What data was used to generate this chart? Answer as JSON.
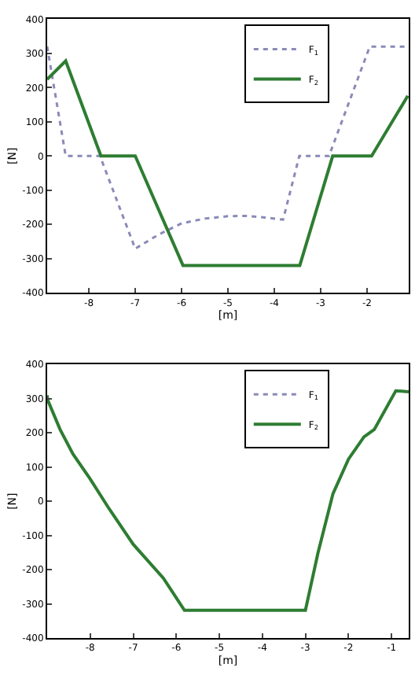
{
  "chart_data": [
    {
      "type": "line",
      "xlabel": "[m]",
      "ylabel": "[N]",
      "xlim": [
        -8.9,
        -1.1
      ],
      "ylim": [
        -400,
        400
      ],
      "xticks": [
        -8,
        -7,
        -6,
        -5,
        -4,
        -3,
        -2
      ],
      "yticks": [
        -400,
        -300,
        -200,
        -100,
        0,
        100,
        200,
        300,
        400
      ],
      "legend": "top right",
      "series": [
        {
          "name": "F$_{1}$",
          "color": "#8a8ab8",
          "line_style": "dotted",
          "x": [
            -8.9,
            -8.5,
            -7.76,
            -7.0,
            -6.5,
            -6.0,
            -5.5,
            -5.0,
            -4.6,
            -4.2,
            -3.81,
            -3.46,
            -2.82,
            -1.94,
            -1.1
          ],
          "values": [
            320,
            0,
            0,
            -271,
            -230,
            -197,
            -183,
            -176,
            -175,
            -180,
            -186,
            0,
            0,
            320,
            320
          ]
        },
        {
          "name": "F$_{2}$",
          "color": "#2e7d32",
          "line_style": "solid",
          "x": [
            -8.9,
            -8.5,
            -7.74,
            -7.0,
            -5.97,
            -3.45,
            -2.74,
            -1.9,
            -1.12
          ],
          "values": [
            224,
            278,
            0,
            0,
            -320,
            -320,
            0,
            0,
            176
          ]
        }
      ]
    },
    {
      "type": "line",
      "xlabel": "[m]",
      "ylabel": "[N]",
      "xlim": [
        -9.0,
        -0.6
      ],
      "ylim": [
        -400,
        400
      ],
      "xticks": [
        -8,
        -7,
        -6,
        -5,
        -4,
        -3,
        -2,
        -1
      ],
      "yticks": [
        -400,
        -300,
        -200,
        -100,
        0,
        100,
        200,
        300,
        400
      ],
      "legend": "top right",
      "series": [
        {
          "name": "F$_{1}$",
          "color": "#8a8ab8",
          "line_style": "dotted",
          "values": [
            null
          ]
        },
        {
          "name": "F$_{2}$",
          "color": "#2e7d32",
          "line_style": "solid",
          "x": [
            -9.0,
            -8.99,
            -8.7,
            -8.4,
            -8.0,
            -7.56,
            -7.0,
            -6.3,
            -5.81,
            -3.0,
            -2.71,
            -2.36,
            -2.0,
            -1.64,
            -1.4,
            -0.9,
            -0.6
          ],
          "values": [
            310,
            297,
            210,
            138,
            65,
            -22,
            -126,
            -225,
            -319,
            -319,
            -152,
            22,
            123,
            188,
            210,
            323,
            320
          ]
        }
      ]
    }
  ]
}
